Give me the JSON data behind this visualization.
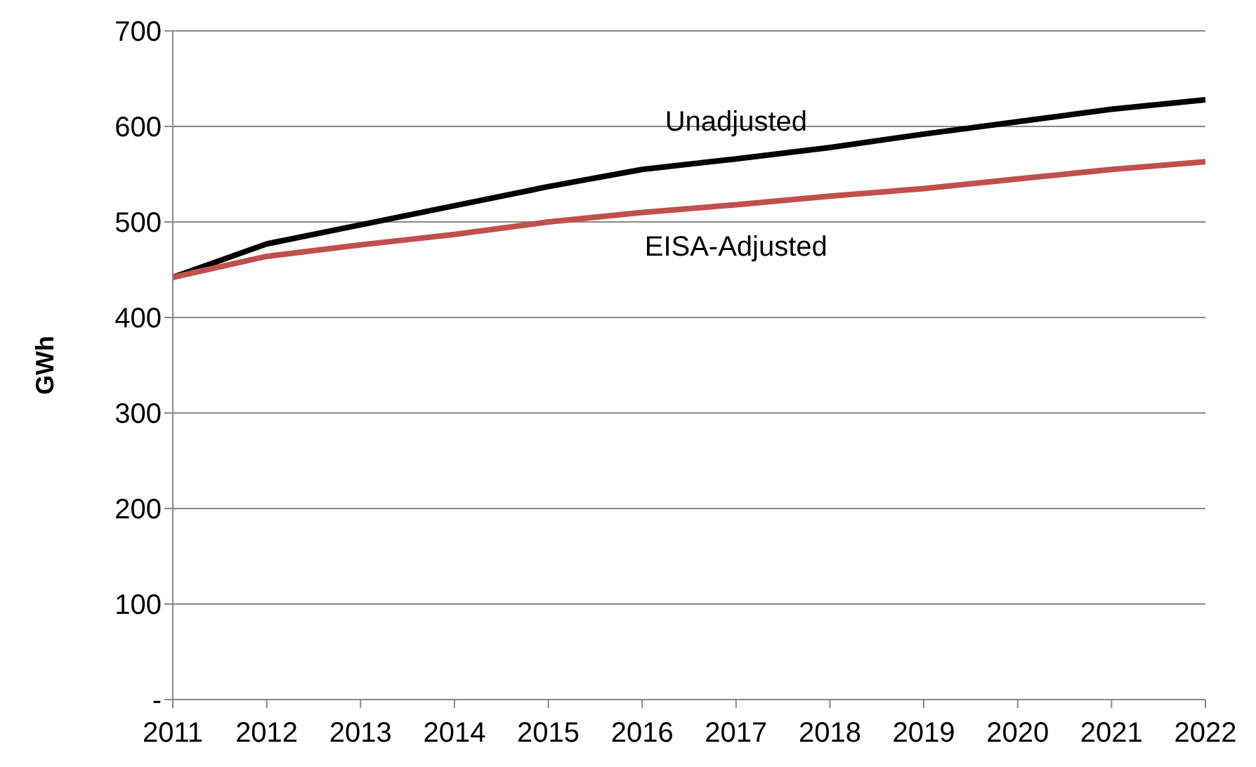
{
  "chart_data": {
    "type": "line",
    "ylabel": "GWh",
    "categories": [
      "2011",
      "2012",
      "2013",
      "2014",
      "2015",
      "2016",
      "2017",
      "2018",
      "2019",
      "2020",
      "2021",
      "2022"
    ],
    "series": [
      {
        "name": "Unadjusted",
        "color": "#000000",
        "values": [
          442,
          477,
          497,
          517,
          537,
          555,
          566,
          578,
          592,
          605,
          618,
          628
        ]
      },
      {
        "name": "EISA-Adjusted",
        "color": "#c0504d",
        "values": [
          442,
          464,
          476,
          487,
          500,
          510,
          518,
          527,
          535,
          545,
          555,
          563
        ]
      }
    ],
    "ylim": [
      0,
      700
    ],
    "yticks": [
      {
        "value": 0,
        "label": "-"
      },
      100,
      200,
      300,
      400,
      500,
      600,
      700
    ],
    "grid": "y",
    "legend": false,
    "marker": "none",
    "line_style": "solid"
  }
}
